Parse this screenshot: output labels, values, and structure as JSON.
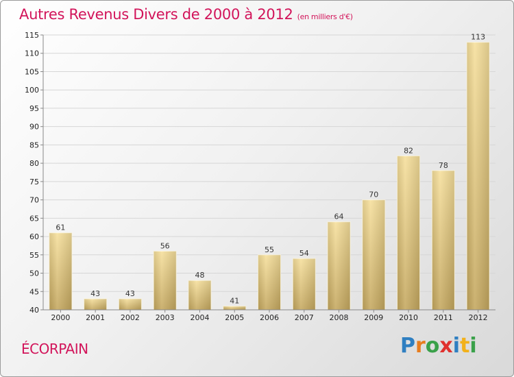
{
  "chart_data": {
    "type": "bar",
    "title": "Autres Revenus Divers de 2000 à 2012",
    "subtitle": "(en milliers d'€)",
    "xlabel": "",
    "ylabel": "",
    "categories": [
      "2000",
      "2001",
      "2002",
      "2003",
      "2004",
      "2005",
      "2006",
      "2007",
      "2008",
      "2009",
      "2010",
      "2011",
      "2012"
    ],
    "values": [
      61,
      43,
      43,
      56,
      48,
      41,
      55,
      54,
      64,
      70,
      82,
      78,
      113
    ],
    "ylim": [
      40,
      115
    ],
    "yticks": [
      40,
      45,
      50,
      55,
      60,
      65,
      70,
      75,
      80,
      85,
      90,
      95,
      100,
      105,
      110,
      115
    ],
    "grid": true,
    "colors": {
      "bar_light": "#f6df9b",
      "bar_dark": "#c4a75e",
      "title": "#d2145a"
    }
  },
  "commune": "ÉCORPAIN",
  "logo": {
    "letters": [
      "P",
      "r",
      "o",
      "x",
      "i",
      "t",
      "i"
    ],
    "colors": [
      "#2f7fc1",
      "#e87d1e",
      "#3aa14a",
      "#e0312e",
      "#2f7fc1",
      "#f2b11a",
      "#3aa14a"
    ]
  }
}
